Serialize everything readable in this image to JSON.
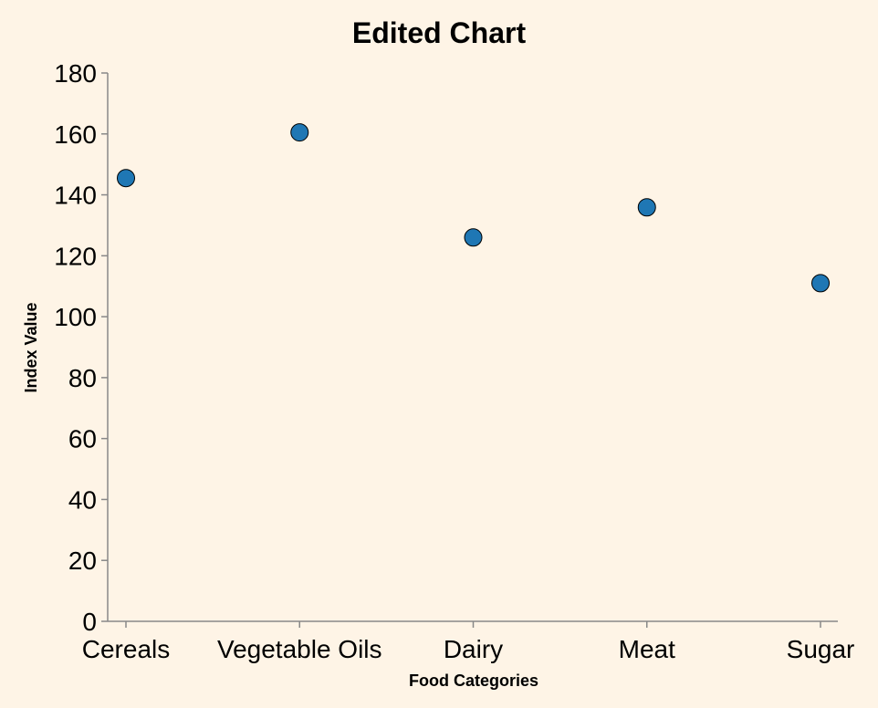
{
  "chart_data": {
    "type": "scatter",
    "title": "Edited Chart",
    "xlabel": "Food Categories",
    "ylabel": "Index Value",
    "categories": [
      "Cereals",
      "Vegetable Oils",
      "Dairy",
      "Meat",
      "Sugar"
    ],
    "values": [
      145.5,
      160.5,
      126,
      135.9,
      111
    ],
    "ylim": [
      0,
      180
    ],
    "yticks": [
      0,
      20,
      40,
      60,
      80,
      100,
      120,
      140,
      160,
      180
    ],
    "grid": false,
    "point_color": "#1f77b4",
    "background_color": "#fef4e6"
  }
}
